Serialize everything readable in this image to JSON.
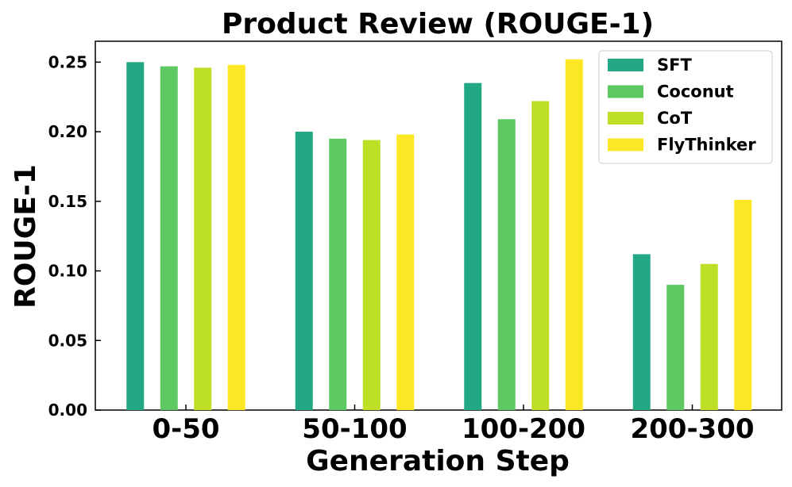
{
  "chart_data": {
    "type": "bar",
    "title": "Product Review (ROUGE-1)",
    "xlabel": "Generation Step",
    "ylabel": "ROUGE-1",
    "categories": [
      "0-50",
      "50-100",
      "100-200",
      "200-300"
    ],
    "ylim": [
      0,
      0.265
    ],
    "yticks": [
      "0.00",
      "0.05",
      "0.10",
      "0.15",
      "0.20",
      "0.25"
    ],
    "grid": false,
    "legend_position": "top-right",
    "series": [
      {
        "name": "SFT",
        "color": "#22a884",
        "values": [
          0.25,
          0.2,
          0.235,
          0.112
        ]
      },
      {
        "name": "Coconut",
        "color": "#5ec962",
        "values": [
          0.247,
          0.195,
          0.209,
          0.09
        ]
      },
      {
        "name": "CoT",
        "color": "#bddf26",
        "values": [
          0.246,
          0.194,
          0.222,
          0.105
        ]
      },
      {
        "name": "FlyThinker",
        "color": "#fde725",
        "values": [
          0.248,
          0.198,
          0.252,
          0.151
        ]
      }
    ]
  }
}
